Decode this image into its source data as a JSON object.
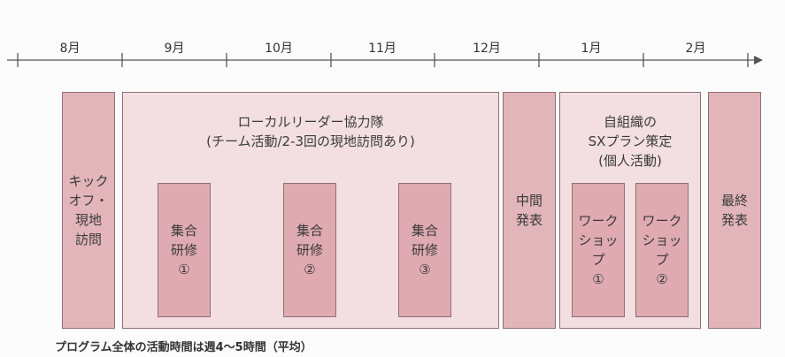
{
  "timeline": {
    "months": [
      "8月",
      "9月",
      "10月",
      "11月",
      "12月",
      "1月",
      "2月"
    ]
  },
  "kickoff": {
    "lines": [
      "キック",
      "オフ・",
      "現地",
      "訪問"
    ]
  },
  "local_leader": {
    "title": "ローカルリーダー協力隊",
    "subtitle": "(チーム活動/2-3回の現地訪問あり)",
    "sessions": [
      {
        "lines": [
          "集合",
          "研修",
          "①"
        ]
      },
      {
        "lines": [
          "集合",
          "研修",
          "②"
        ]
      },
      {
        "lines": [
          "集合",
          "研修",
          "③"
        ]
      }
    ]
  },
  "midterm": {
    "lines": [
      "中間",
      "発表"
    ]
  },
  "sx_plan": {
    "title_lines": [
      "自組織の",
      "SXプラン策定",
      "(個人活動)"
    ],
    "workshops": [
      {
        "lines": [
          "ワーク",
          "ショッ",
          "プ",
          "①"
        ]
      },
      {
        "lines": [
          "ワーク",
          "ショッ",
          "プ",
          "②"
        ]
      }
    ]
  },
  "final": {
    "lines": [
      "最終",
      "発表"
    ]
  },
  "footnote": "プログラム全体の活動時間は週4〜5時間（平均）",
  "colors": {
    "dark_box": "#e2b5bb",
    "light_box": "#f3dfe1",
    "inner_box": "#dfaab1",
    "border": "#8e6f73",
    "axis": "#555555"
  }
}
